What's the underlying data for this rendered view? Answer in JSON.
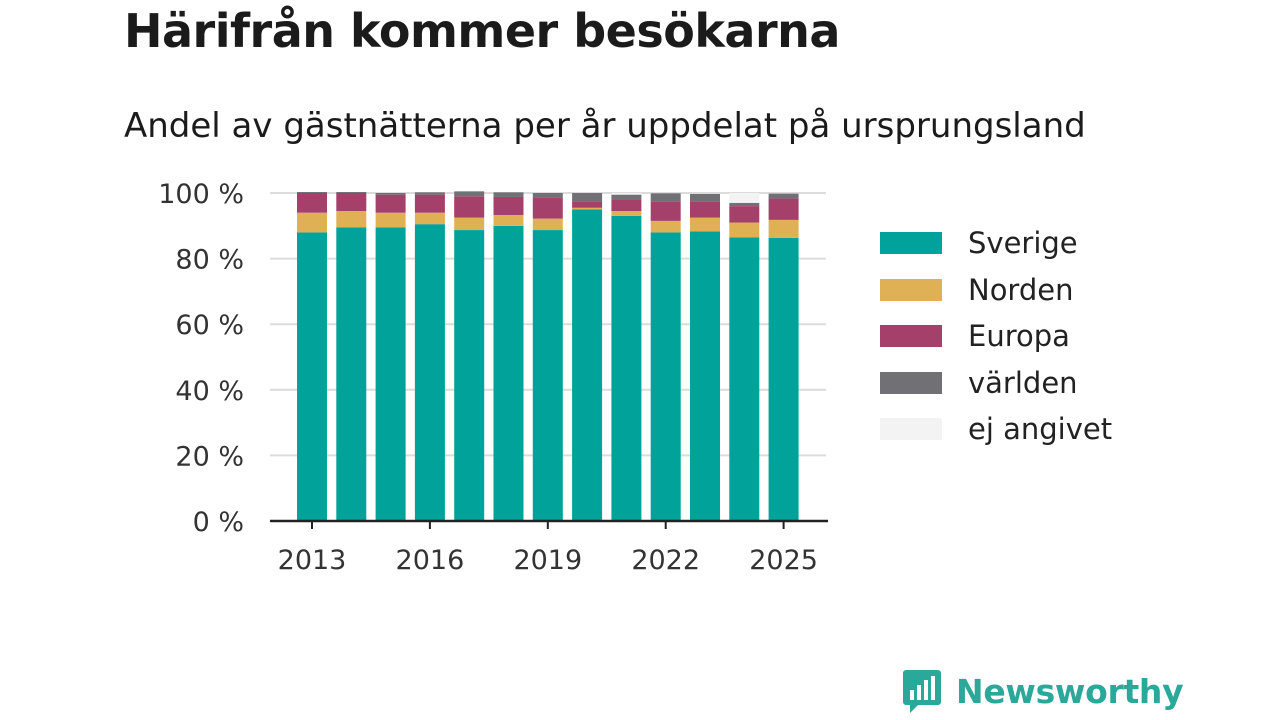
{
  "header": {
    "title": "Härifrån kommer besökarna",
    "subtitle": "Andel av gästnätterna per år uppdelat på ursprungsland"
  },
  "brand": {
    "name": "Newsworthy",
    "color": "#2aa89a",
    "icon": "newsworthy-logo-icon"
  },
  "chart_data": {
    "type": "bar",
    "stacked": true,
    "title": "Härifrån kommer besökarna",
    "subtitle": "Andel av gästnätterna per år uppdelat på ursprungsland",
    "x": [
      2013,
      2014,
      2015,
      2016,
      2017,
      2018,
      2019,
      2020,
      2021,
      2022,
      2023,
      2024,
      2025
    ],
    "x_ticks": [
      "2013",
      "2016",
      "2019",
      "2022",
      "2025"
    ],
    "x_tick_values": [
      2013,
      2016,
      2019,
      2022,
      2025
    ],
    "ylim": [
      0,
      100
    ],
    "y_ticks": [
      "0 %",
      "20 %",
      "40 %",
      "60 %",
      "80 %",
      "100 %"
    ],
    "y_tick_values": [
      0,
      20,
      40,
      60,
      80,
      100
    ],
    "grid": true,
    "legend_position": "right",
    "series": [
      {
        "name": "Sverige",
        "color": "#00a29a",
        "values": [
          88,
          89.5,
          89.5,
          90.5,
          88.7,
          90,
          88.7,
          95,
          93,
          88,
          88.3,
          86.5,
          86.3
        ]
      },
      {
        "name": "Norden",
        "color": "#dfb154",
        "values": [
          6,
          5,
          4.5,
          3.5,
          3.8,
          3.3,
          3.5,
          0.5,
          1.5,
          3.5,
          4.2,
          4.5,
          5.5
        ]
      },
      {
        "name": "Europa",
        "color": "#a5406b",
        "values": [
          6,
          5.5,
          5.5,
          5.5,
          6.5,
          5.5,
          6.3,
          2,
          3.5,
          6,
          5,
          5,
          6.5
        ]
      },
      {
        "name": "världen",
        "color": "#707075",
        "values": [
          0.3,
          0.3,
          0.5,
          0.7,
          1.5,
          1.4,
          1.5,
          2.5,
          1.5,
          2.4,
          2.2,
          1,
          1.5
        ]
      },
      {
        "name": "ej angivet",
        "color": "#f3f3f3",
        "values": [
          0,
          0,
          0,
          0,
          0,
          0,
          0,
          0,
          0.5,
          0,
          0,
          3,
          0
        ]
      }
    ]
  }
}
